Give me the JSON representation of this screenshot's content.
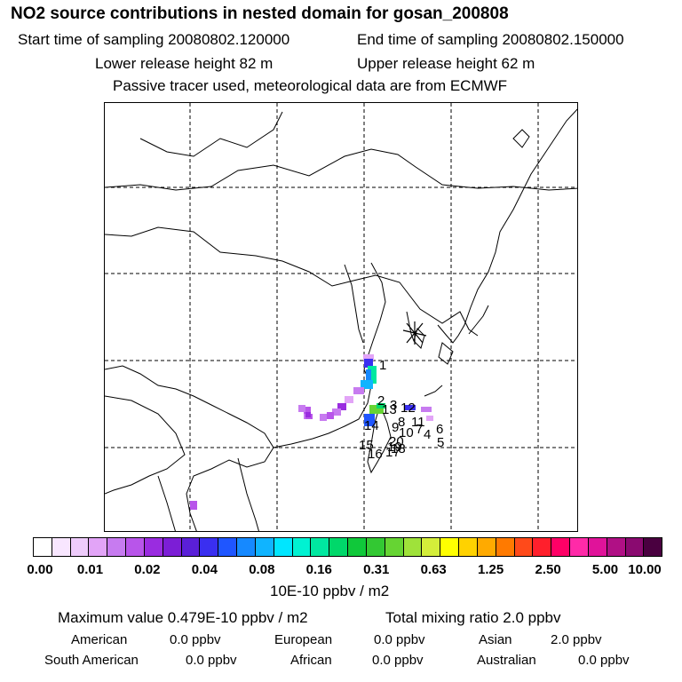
{
  "header": {
    "title": "NO2 source contributions in nested domain for gosan_200808",
    "start_time": "Start time of sampling 20080802.120000",
    "end_time": "End time of sampling 20080802.150000",
    "lower_height": "Lower release height   82 m",
    "upper_height": "Upper release height   62 m",
    "tracer_note": "Passive tracer used, meteorological data are from ECMWF"
  },
  "map": {
    "site_marker": "star-icon",
    "labels": [
      "1",
      "2",
      "3",
      "4",
      "5",
      "6",
      "7",
      "8",
      "9",
      "10",
      "11",
      "12",
      "13",
      "14",
      "15",
      "16",
      "17",
      "18",
      "19",
      "20"
    ]
  },
  "colorbar": {
    "colors": [
      "#ffffff",
      "#f8e6ff",
      "#eecbfb",
      "#e2a4f7",
      "#c77bf0",
      "#b855ea",
      "#9a2ce0",
      "#7c1ed6",
      "#5a1fd8",
      "#3a2ff0",
      "#1f56ff",
      "#1689ff",
      "#10b4ff",
      "#00e6ff",
      "#00f2d2",
      "#00e8a0",
      "#00d86a",
      "#10c83a",
      "#33c833",
      "#66d433",
      "#9fe23a",
      "#d4ee3a",
      "#ffff00",
      "#ffd200",
      "#ffaa00",
      "#ff7a00",
      "#ff4a1a",
      "#ff1f2c",
      "#ff0066",
      "#ff2aa8",
      "#e0139a",
      "#b01085",
      "#8a0a70",
      "#4a0040"
    ],
    "ticks": [
      "0.00",
      "0.01",
      "0.02",
      "0.04",
      "0.08",
      "0.16",
      "0.31",
      "0.63",
      "1.25",
      "2.50",
      "5.00",
      "10.00"
    ],
    "units": "10E-10 ppbv / m2"
  },
  "summary": {
    "max_value": "Maximum value  0.479E-10 ppbv / m2",
    "total_mixing": "Total mixing ratio        2.0 ppbv",
    "regions": [
      {
        "name": "American",
        "value": "0.0 ppbv"
      },
      {
        "name": "European",
        "value": "0.0 ppbv"
      },
      {
        "name": "Asian",
        "value": "2.0 ppbv"
      },
      {
        "name": "South American",
        "value": "0.0 ppbv"
      },
      {
        "name": "African",
        "value": "0.0 ppbv"
      },
      {
        "name": "Australian",
        "value": "0.0 ppbv"
      }
    ]
  }
}
